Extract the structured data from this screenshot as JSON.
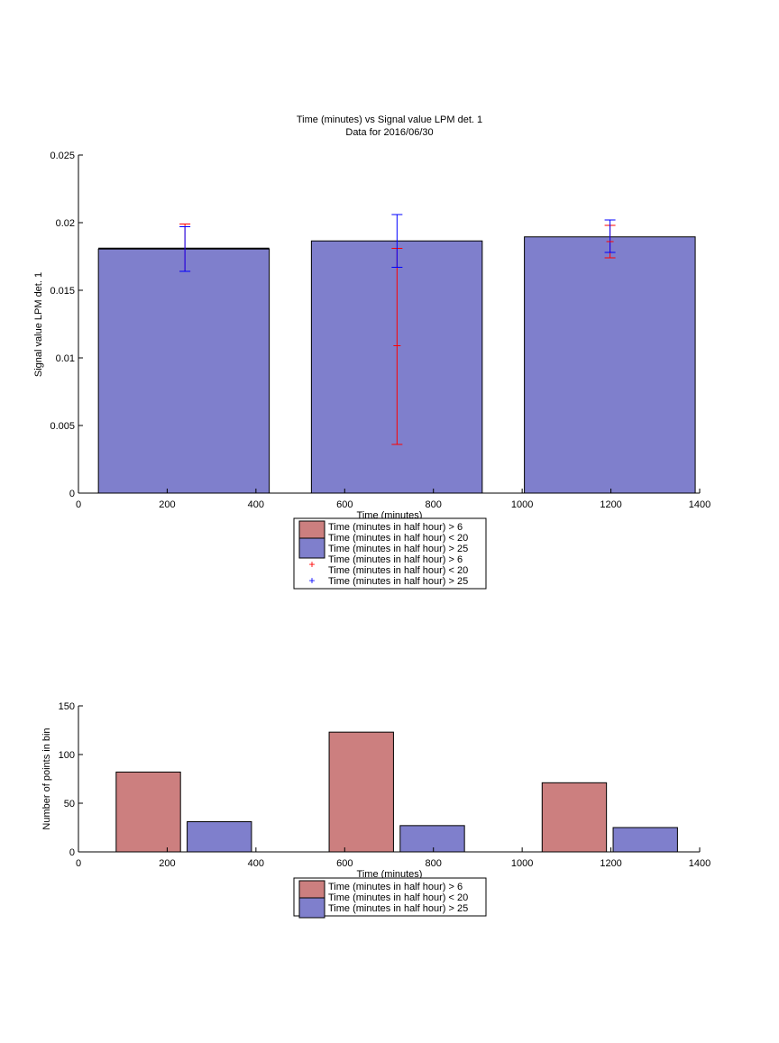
{
  "colors": {
    "red_bar": "#cc7f7f",
    "blue_bar": "#7f7fcc",
    "red_err": "#ff0000",
    "blue_err": "#0000ff",
    "axis": "#000000"
  },
  "chart_data": [
    {
      "type": "bar",
      "title": "Time (minutes) vs Signal value LPM det. 1",
      "subtitle": "Data for 2016/06/30",
      "xlabel": "Time (minutes)",
      "ylabel": "Signal value LPM det. 1",
      "xlim": [
        0,
        1400
      ],
      "ylim": [
        0,
        0.025
      ],
      "xticks": [
        "0",
        "200",
        "400",
        "600",
        "800",
        "1000",
        "1200",
        "1400"
      ],
      "yticks": [
        "0",
        "0.005",
        "0.01",
        "0.015",
        "0.02",
        "0.025"
      ],
      "grid": false,
      "legend_position": "below",
      "bars": [
        {
          "series": "Time (minutes in half hour) > 25",
          "x0": 45,
          "x1": 430,
          "value": 0.01805
        },
        {
          "series": "Time (minutes in half hour) > 25",
          "x0": 525,
          "x1": 910,
          "value": 0.01865
        },
        {
          "series": "Time (minutes in half hour) > 25",
          "x0": 1005,
          "x1": 1390,
          "value": 0.01895
        }
      ],
      "bar_edge": {
        "x0": 45,
        "x1": 430,
        "value": 0.0181
      },
      "error_bars": [
        {
          "series": "Time (minutes in half hour) > 6 Time (minutes in half hour) < 20",
          "x": 240,
          "low": 0.0164,
          "high": 0.0199
        },
        {
          "series": "Time (minutes in half hour) > 6 Time (minutes in half hour) < 20",
          "x": 718,
          "low": 0.0036,
          "high": 0.0181
        },
        {
          "series": "Time (minutes in half hour) > 6 Time (minutes in half hour) < 20",
          "x": 1198,
          "low": 0.0174,
          "high": 0.0198
        },
        {
          "series": "Time (minutes in half hour) > 25",
          "x": 240,
          "low": 0.0164,
          "high": 0.0197
        },
        {
          "series": "Time (minutes in half hour) > 25",
          "x": 718,
          "low": 0.0167,
          "high": 0.0206
        },
        {
          "series": "Time (minutes in half hour) > 25",
          "x": 1198,
          "low": 0.0178,
          "high": 0.0202
        }
      ],
      "error_markers": [
        {
          "series": "Time (minutes in half hour) > 6 Time (minutes in half hour) < 20",
          "x": 718,
          "y": 0.0109
        },
        {
          "series": "Time (minutes in half hour) > 6 Time (minutes in half hour) < 20",
          "x": 1198,
          "y": 0.0186
        }
      ],
      "legend": [
        {
          "kind": "patch",
          "color": "red_bar",
          "lines": [
            "Time (minutes in half hour) > 6",
            "Time (minutes in half hour) < 20"
          ]
        },
        {
          "kind": "patch",
          "color": "blue_bar",
          "lines": [
            "Time (minutes in half hour) > 25"
          ]
        },
        {
          "kind": "marker",
          "color": "red_err",
          "lines": [
            "Time (minutes in half hour) > 6",
            "Time (minutes in half hour) < 20"
          ]
        },
        {
          "kind": "marker",
          "color": "blue_err",
          "lines": [
            "Time (minutes in half hour) > 25"
          ]
        }
      ]
    },
    {
      "type": "bar",
      "xlabel": "Time (minutes)",
      "ylabel": "Number of points in bin",
      "xlim": [
        0,
        1400
      ],
      "ylim": [
        0,
        150
      ],
      "xticks": [
        "0",
        "200",
        "400",
        "600",
        "800",
        "1000",
        "1200",
        "1400"
      ],
      "yticks": [
        "0",
        "50",
        "100",
        "150"
      ],
      "grid": false,
      "legend_position": "below",
      "bars": [
        {
          "series": "Time (minutes in half hour) > 6 Time (minutes in half hour) < 20",
          "x0": 85,
          "x1": 230,
          "value": 82
        },
        {
          "series": "Time (minutes in half hour) > 25",
          "x0": 245,
          "x1": 390,
          "value": 31
        },
        {
          "series": "Time (minutes in half hour) > 6 Time (minutes in half hour) < 20",
          "x0": 565,
          "x1": 710,
          "value": 123
        },
        {
          "series": "Time (minutes in half hour) > 25",
          "x0": 725,
          "x1": 870,
          "value": 27
        },
        {
          "series": "Time (minutes in half hour) > 6 Time (minutes in half hour) < 20",
          "x0": 1045,
          "x1": 1190,
          "value": 71
        },
        {
          "series": "Time (minutes in half hour) > 25",
          "x0": 1205,
          "x1": 1350,
          "value": 25
        }
      ],
      "legend": [
        {
          "kind": "patch",
          "color": "red_bar",
          "lines": [
            "Time (minutes in half hour) > 6",
            "Time (minutes in half hour) < 20"
          ]
        },
        {
          "kind": "patch",
          "color": "blue_bar",
          "lines": [
            "Time (minutes in half hour) > 25"
          ]
        }
      ]
    }
  ]
}
